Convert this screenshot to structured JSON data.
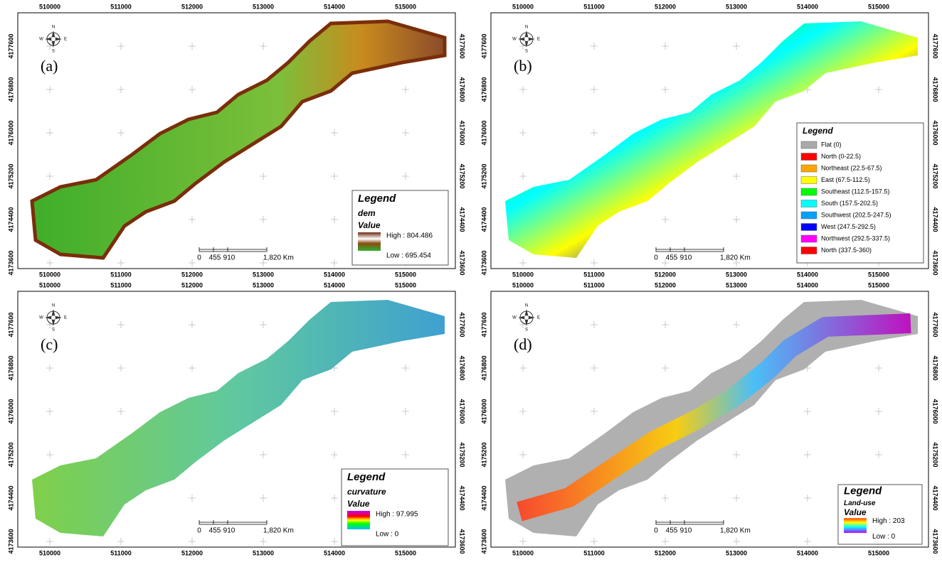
{
  "x_ticks": [
    "510000",
    "511000",
    "512000",
    "513000",
    "514000",
    "515000"
  ],
  "y_ticks": [
    "4177600",
    "4176800",
    "4176000",
    "4175200",
    "4174400",
    "4173600"
  ],
  "scale_bar": [
    "0",
    "455",
    "910",
    "1,820 Km"
  ],
  "compass": {
    "n": "N",
    "s": "S",
    "e": "E",
    "w": "W"
  },
  "panels": [
    {
      "label": "(a)",
      "legend": {
        "title": "Legend",
        "layer": "dem",
        "field": "Value",
        "high": "High : 804.486",
        "low": "Low : 695.454"
      }
    },
    {
      "label": "(b)",
      "legend": {
        "title": "Legend",
        "classes": [
          {
            "name": "Flat (0)",
            "color": "#aaaaaa"
          },
          {
            "name": "North (0-22.5)",
            "color": "#ff0000"
          },
          {
            "name": "Northeast (22.5-67.5)",
            "color": "#ffa500"
          },
          {
            "name": "East (67.5-112.5)",
            "color": "#ffff00"
          },
          {
            "name": "Southeast (112.5-157.5)",
            "color": "#00ff00"
          },
          {
            "name": "South (157.5-202.5)",
            "color": "#00ffff"
          },
          {
            "name": "Southwest (202.5-247.5)",
            "color": "#00a0ff"
          },
          {
            "name": "West (247.5-292.5)",
            "color": "#0000ff"
          },
          {
            "name": "Northwest (292.5-337.5)",
            "color": "#ff00ff"
          },
          {
            "name": "North (337.5-360)",
            "color": "#ff0000"
          }
        ]
      }
    },
    {
      "label": "(c)",
      "legend": {
        "title": "Legend",
        "layer": "curvature",
        "field": "Value",
        "high": "High : 97.995",
        "low": "Low : 0"
      }
    },
    {
      "label": "(d)",
      "legend": {
        "title": "Legend",
        "layer": "Land-use",
        "field": "Value",
        "high": "High : 203",
        "low": "Low : 0"
      }
    }
  ]
}
